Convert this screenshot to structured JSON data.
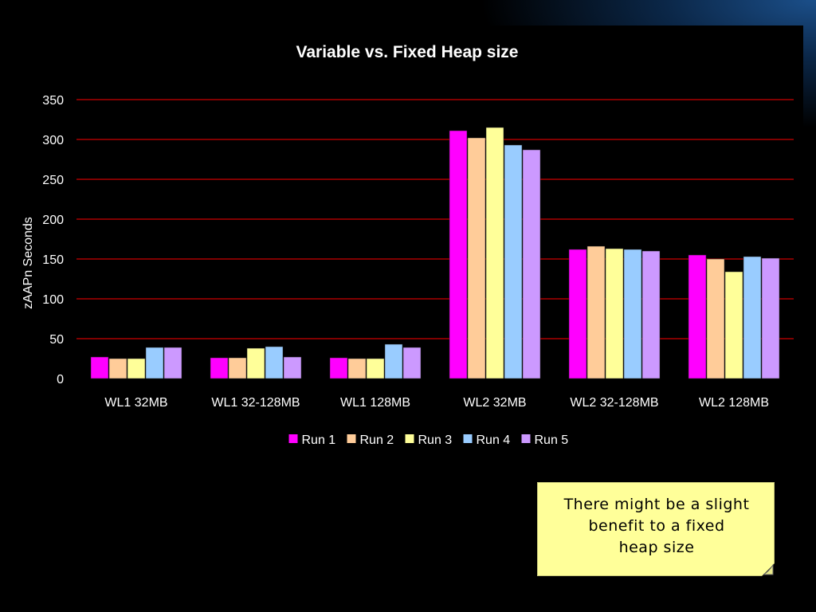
{
  "chart_data": {
    "type": "bar",
    "title": "Variable vs. Fixed Heap size",
    "xlabel": "",
    "ylabel": "zAAPn Seconds",
    "ylim": [
      0,
      350
    ],
    "yticks": [
      0,
      50,
      100,
      150,
      200,
      250,
      300,
      350
    ],
    "grid": true,
    "legend_position": "bottom",
    "categories": [
      "WL1 32MB",
      "WL1 32-128MB",
      "WL1 128MB",
      "WL2 32MB",
      "WL2 32-128MB",
      "WL2 128MB"
    ],
    "series": [
      {
        "name": "Run 1",
        "color": "#ff00ff",
        "values": [
          27,
          26,
          26,
          311,
          162,
          155
        ]
      },
      {
        "name": "Run 2",
        "color": "#ffcc99",
        "values": [
          25,
          26,
          25,
          302,
          166,
          150
        ]
      },
      {
        "name": "Run 3",
        "color": "#ffff99",
        "values": [
          25,
          38,
          25,
          315,
          163,
          134
        ]
      },
      {
        "name": "Run 4",
        "color": "#99ccff",
        "values": [
          39,
          40,
          43,
          293,
          162,
          153
        ]
      },
      {
        "name": "Run 5",
        "color": "#cc99ff",
        "values": [
          39,
          27,
          39,
          287,
          160,
          151
        ]
      }
    ],
    "gridline_color": "#cc0000"
  },
  "callout": {
    "lines": [
      "There might be a slight",
      "benefit to a fixed",
      "heap size"
    ]
  }
}
